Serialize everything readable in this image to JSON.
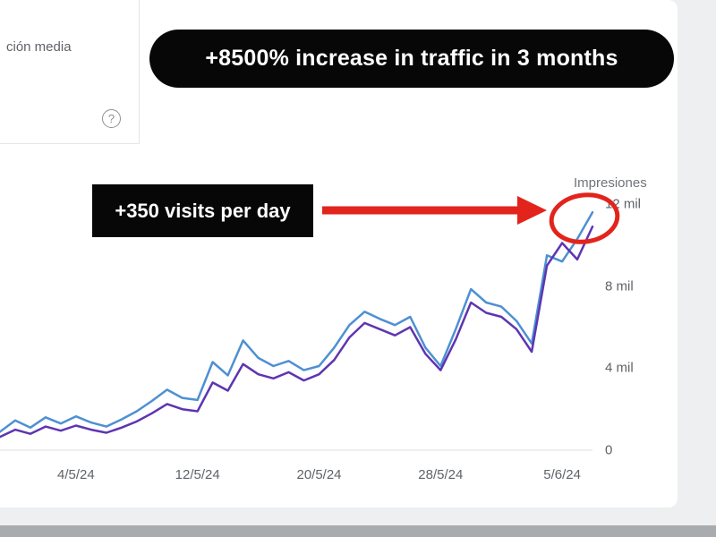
{
  "metric_card": {
    "label": "ción media",
    "help_glyph": "?"
  },
  "annotations": {
    "banner": "+8500% increase in traffic in 3 months",
    "callout": "+350 visits per day",
    "accent_color": "#e2241c"
  },
  "chart_data": {
    "type": "line",
    "axis_label": "Impresiones",
    "ylim": [
      0,
      12000
    ],
    "grid": "baseline-only",
    "legend_position": "none",
    "x": [
      "29/4/24",
      "30/4/24",
      "1/5/24",
      "2/5/24",
      "3/5/24",
      "4/5/24",
      "5/5/24",
      "6/5/24",
      "7/5/24",
      "8/5/24",
      "9/5/24",
      "10/5/24",
      "11/5/24",
      "12/5/24",
      "13/5/24",
      "14/5/24",
      "15/5/24",
      "16/5/24",
      "17/5/24",
      "18/5/24",
      "19/5/24",
      "20/5/24",
      "21/5/24",
      "22/5/24",
      "23/5/24",
      "24/5/24",
      "25/5/24",
      "26/5/24",
      "27/5/24",
      "28/5/24",
      "29/5/24",
      "30/5/24",
      "31/5/24",
      "1/6/24",
      "2/6/24",
      "3/6/24",
      "4/6/24",
      "5/6/24",
      "6/6/24",
      "7/6/24"
    ],
    "series": [
      {
        "name": "series-blue",
        "color": "#4e90d2",
        "values": [
          900,
          1450,
          1100,
          1600,
          1300,
          1650,
          1350,
          1150,
          1500,
          1900,
          2400,
          2950,
          2550,
          2450,
          4300,
          3650,
          5350,
          4500,
          4100,
          4350,
          3900,
          4100,
          5000,
          6100,
          6750,
          6400,
          6100,
          6500,
          5000,
          4100,
          5900,
          7850,
          7200,
          7000,
          6300,
          5200,
          9500,
          9200,
          10300,
          11600
        ]
      },
      {
        "name": "series-purple",
        "color": "#5e35b1",
        "values": [
          650,
          1000,
          800,
          1150,
          950,
          1200,
          1000,
          850,
          1100,
          1400,
          1800,
          2250,
          2000,
          1900,
          3300,
          2900,
          4200,
          3700,
          3500,
          3800,
          3400,
          3700,
          4400,
          5500,
          6200,
          5900,
          5600,
          6000,
          4700,
          3900,
          5400,
          7200,
          6700,
          6500,
          5900,
          4800,
          9000,
          10100,
          9300,
          10900
        ]
      }
    ],
    "yticks": [
      {
        "label": "12 mil",
        "value": 12000
      },
      {
        "label": "8 mil",
        "value": 8000
      },
      {
        "label": "4 mil",
        "value": 4000
      },
      {
        "label": "0",
        "value": 0
      }
    ],
    "xticks": [
      {
        "label": "4/5/24",
        "index": 5
      },
      {
        "label": "12/5/24",
        "index": 13
      },
      {
        "label": "20/5/24",
        "index": 21
      },
      {
        "label": "28/5/24",
        "index": 29
      },
      {
        "label": "5/6/24",
        "index": 37
      }
    ]
  }
}
